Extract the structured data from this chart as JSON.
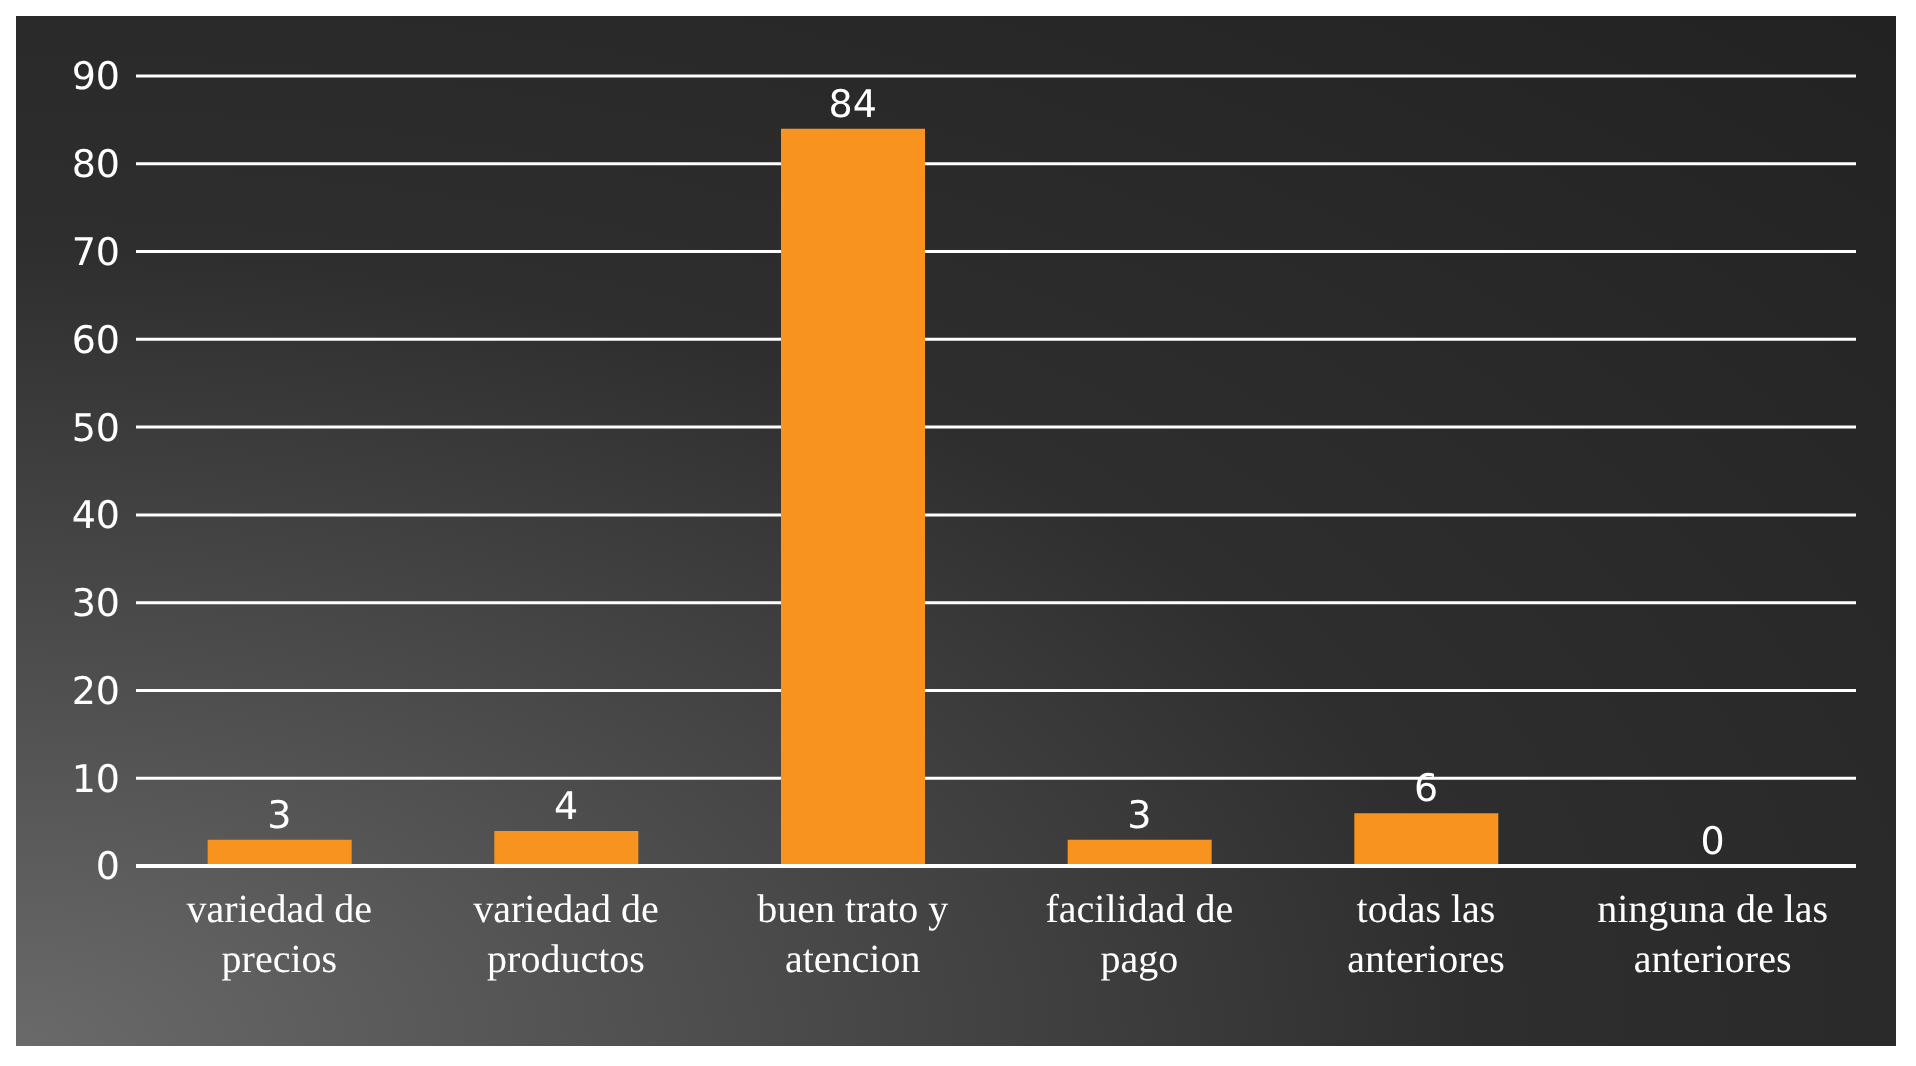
{
  "chart_data": {
    "type": "bar",
    "categories": [
      "variedad de precios",
      "variedad de productos",
      "buen trato y atencion",
      "facilidad de pago",
      "todas las anteriores",
      "ninguna de las anteriores"
    ],
    "values": [
      3,
      4,
      84,
      3,
      6,
      0
    ],
    "color": "#f7931e",
    "ylim": [
      0,
      90
    ],
    "yticks": [
      0,
      10,
      20,
      30,
      40,
      50,
      60,
      70,
      80,
      90
    ],
    "grid": "y",
    "data_labels": true
  }
}
